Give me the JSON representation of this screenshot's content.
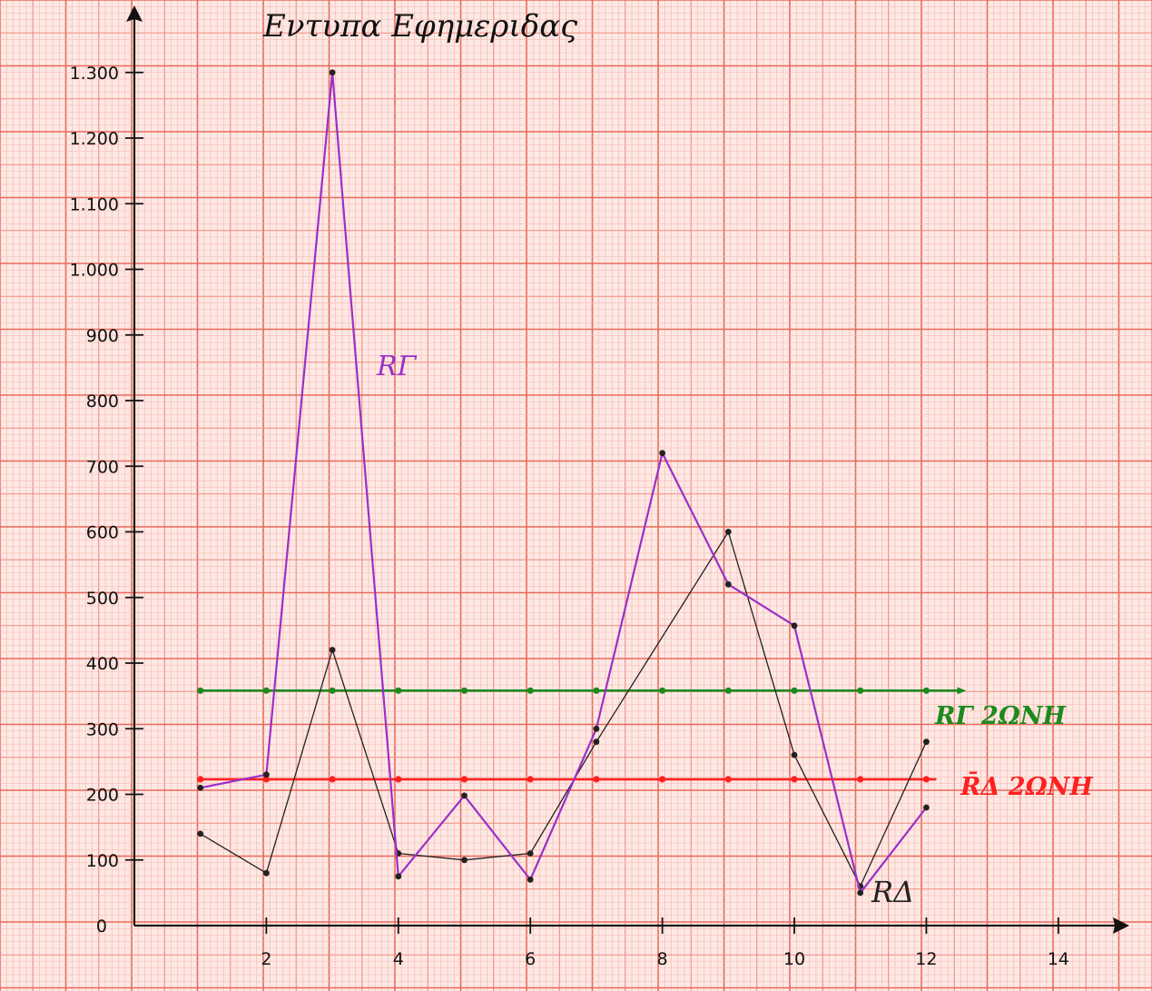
{
  "chart_data": {
    "type": "line",
    "title": "Εντυπα Εφημεριδας",
    "xlabel": "",
    "ylabel": "",
    "xlim": [
      0,
      14.6
    ],
    "ylim": [
      0,
      1300
    ],
    "x_ticks": [
      2,
      4,
      6,
      8,
      10,
      12,
      14
    ],
    "x_tick_labels": [
      "2",
      "4",
      "6",
      "8",
      "10",
      "12",
      "14"
    ],
    "y_ticks": [
      0,
      100,
      200,
      300,
      400,
      500,
      600,
      700,
      800,
      900,
      1000,
      1100,
      1200,
      1300
    ],
    "y_tick_labels": [
      "0",
      "100",
      "200",
      "300",
      "400",
      "500",
      "600",
      "700",
      "800",
      "900",
      "1.000",
      "1.100",
      "1.200",
      "1.300"
    ],
    "grid": true,
    "series": [
      {
        "name": "RΓ",
        "color": "#9b30c8",
        "x": [
          1,
          2,
          3,
          4,
          5,
          6,
          7,
          8,
          9,
          10,
          11,
          12
        ],
        "values": [
          210,
          230,
          1300,
          75,
          198,
          70,
          300,
          720,
          520,
          457,
          50,
          180
        ]
      },
      {
        "name": "RΔ",
        "color": "#222222",
        "x": [
          1,
          2,
          3,
          4,
          5,
          6,
          7,
          9,
          10,
          11,
          12
        ],
        "values": [
          140,
          80,
          420,
          110,
          100,
          110,
          280,
          600,
          260,
          60,
          280
        ]
      },
      {
        "name": "RΓ 2ΩΝΗ",
        "color": "#1e8a1e",
        "x": [
          1,
          2,
          3,
          4,
          5,
          6,
          7,
          8,
          9,
          10,
          11,
          12
        ],
        "values": [
          358,
          358,
          358,
          358,
          358,
          358,
          358,
          358,
          358,
          358,
          358,
          358
        ]
      },
      {
        "name": "R̄Δ 2ΩΝΗ",
        "color": "#ff2020",
        "x": [
          1,
          2,
          3,
          4,
          5,
          6,
          7,
          8,
          9,
          10,
          11,
          12
        ],
        "values": [
          223,
          223,
          223,
          223,
          223,
          223,
          223,
          223,
          223,
          223,
          223,
          223
        ]
      }
    ]
  }
}
